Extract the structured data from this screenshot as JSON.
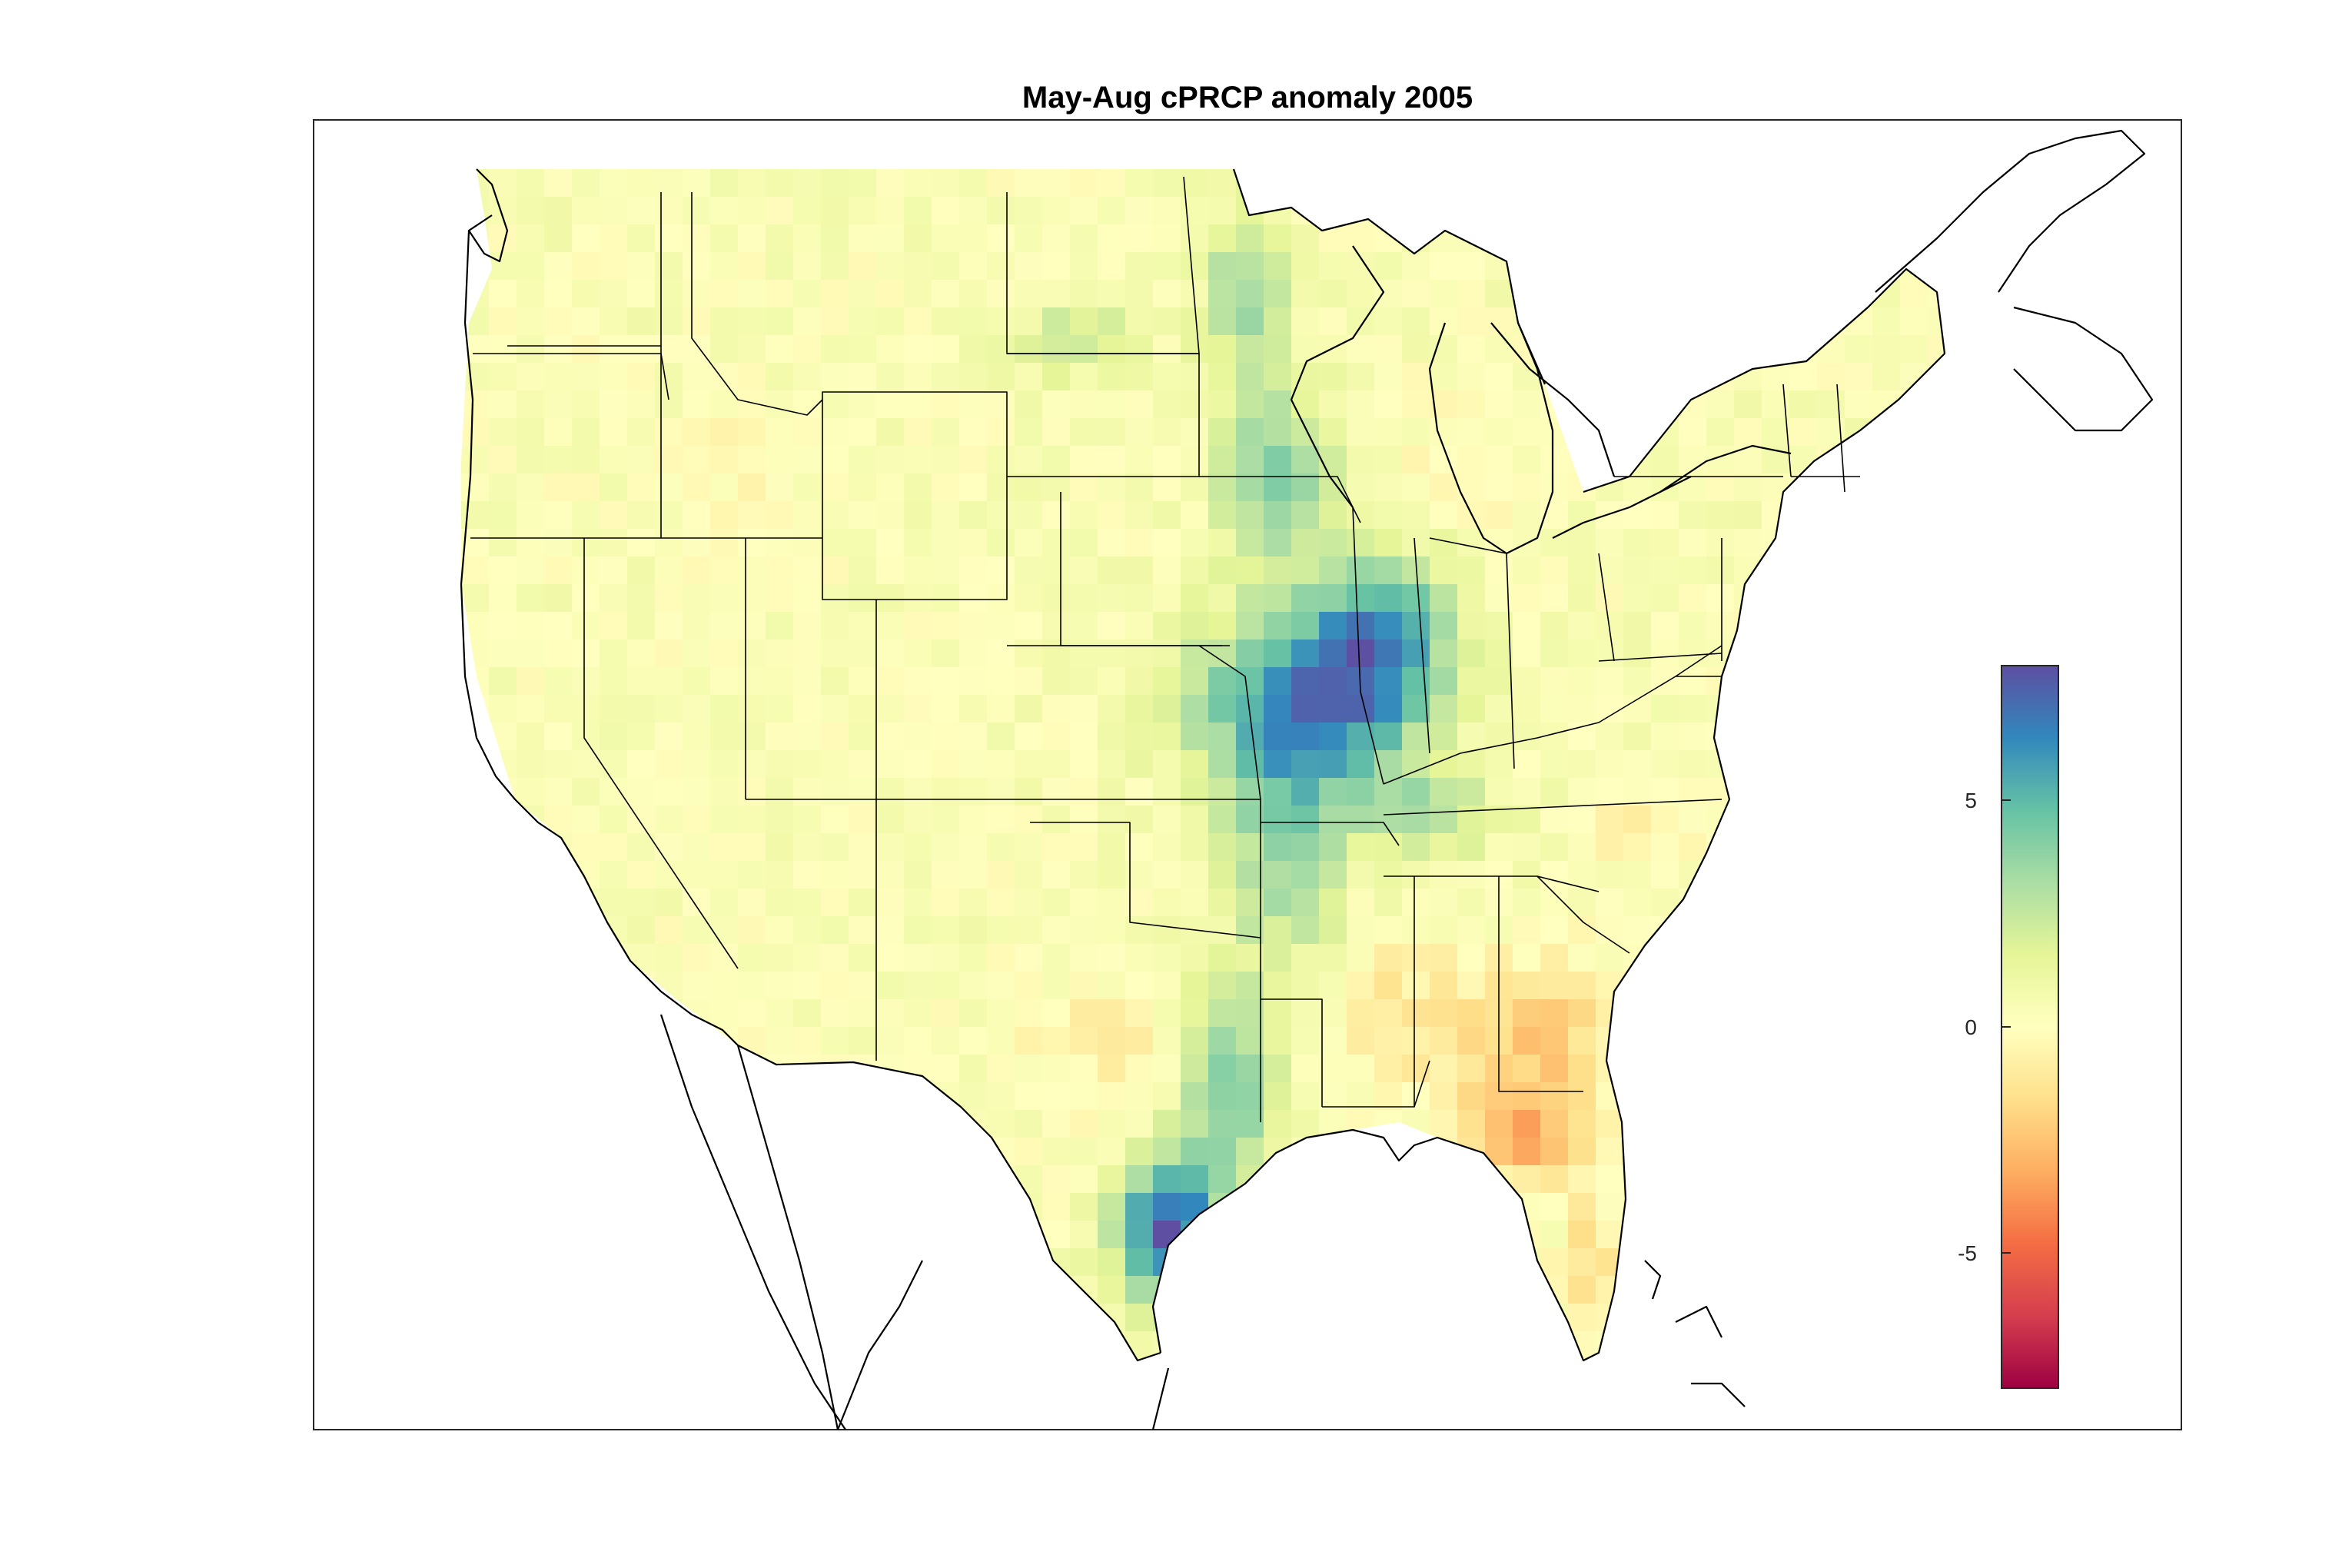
{
  "title": "May-Aug cPRCP anomaly 2005",
  "colorbar": {
    "colormap": "spectral",
    "range": [
      -8,
      8
    ],
    "ticks": [
      {
        "value": 5,
        "label": "5"
      },
      {
        "value": 0,
        "label": "0"
      },
      {
        "value": -5,
        "label": "-5"
      }
    ],
    "stops": [
      "#5e4fa2",
      "#3288bd",
      "#66c2a5",
      "#abdda4",
      "#e6f598",
      "#ffffbf",
      "#fee08b",
      "#fdae61",
      "#f46d43",
      "#d53e4f",
      "#9e0142"
    ]
  },
  "map": {
    "region": "Contiguous United States",
    "background_cell_value": 0.3,
    "anomaly_patches": [
      {
        "area": "Missouri / Illinois / Arkansas",
        "value": 6.5
      },
      {
        "area": "Illinois / Indiana",
        "value": 4.5
      },
      {
        "area": "Iowa / Minnesota",
        "value": 3.5
      },
      {
        "area": "Minnesota / Red River Valley",
        "value": 3.0
      },
      {
        "area": "Arkansas / Louisiana",
        "value": 3.0
      },
      {
        "area": "East Texas",
        "value": 4.0
      },
      {
        "area": "South Texas coast",
        "value": 7.5
      },
      {
        "area": "Tennessee / Kentucky",
        "value": 2.5
      },
      {
        "area": "North Dakota",
        "value": 2.0
      },
      {
        "area": "Georgia / South Carolina",
        "value": -2.5
      },
      {
        "area": "Florida Panhandle / North Florida",
        "value": -3.0
      },
      {
        "area": "Central Florida",
        "value": -2.0
      },
      {
        "area": "Mississippi / Alabama",
        "value": -1.5
      },
      {
        "area": "Central Texas",
        "value": -1.0
      },
      {
        "area": "Virginia / North Carolina",
        "value": -1.0
      },
      {
        "area": "Michigan / Wisconsin",
        "value": -0.8
      },
      {
        "area": "Idaho / Oregon",
        "value": -0.6
      }
    ]
  }
}
